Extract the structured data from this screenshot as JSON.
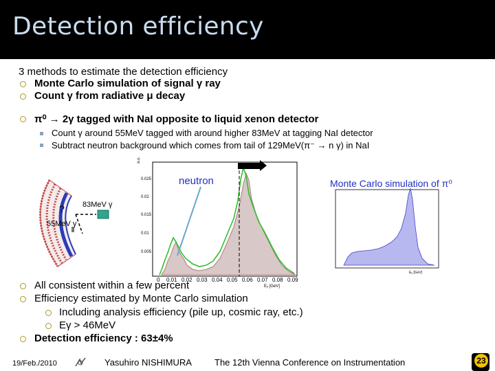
{
  "header": {
    "title": "Detection efficiency"
  },
  "intro": "3 methods to estimate the detection efficiency",
  "methods": [
    "Monte Carlo simulation of signal γ ray",
    "Count γ from radiative μ decay",
    "π⁰ → 2γ tagged with NaI opposite to liquid xenon detector"
  ],
  "sub_bullets": [
    "Count γ around 55MeV tagged with around higher 83MeV at tagging NaI detector",
    "Subtract neutron background which comes from tail of 129MeV(π⁻ → n γ) in NaI"
  ],
  "figure": {
    "neutron_label": "neutron",
    "mc_label": "Monte Carlo simulation of π⁰",
    "unknown": "?",
    "gamma_high": "83MeV γ",
    "gamma_low": "55MeV γ",
    "left_ylabel": "a.u.",
    "left_xlabel": "Eᵧ [GeV]",
    "left_yticks": [
      "0.025",
      "0.02",
      "0.015",
      "0.01",
      "0.005"
    ],
    "left_xticks": [
      "0",
      "0.01",
      "0.02",
      "0.03",
      "0.04",
      "0.05",
      "0.06",
      "0.07",
      "0.08",
      "0.09"
    ],
    "right_xlabel": "Eᵧ [GeV]"
  },
  "results": [
    "All consistent within a few percent",
    "Efficiency estimated by Monte Carlo simulation"
  ],
  "results_sub": [
    "Including analysis efficiency (pile up, cosmic ray, etc.)",
    "Eγ > 46MeV"
  ],
  "final": "Detection efficiency : 63±4%",
  "footer": {
    "date": "19/Feb./2010",
    "author": "Yasuhiro NISHIMURA",
    "conference": "The 12th Vienna Conference on Instrumentation",
    "page": "23"
  },
  "colors": {
    "title": "#c9dcf0",
    "bullet": "#a89a1c",
    "accent": "#f2c200"
  }
}
